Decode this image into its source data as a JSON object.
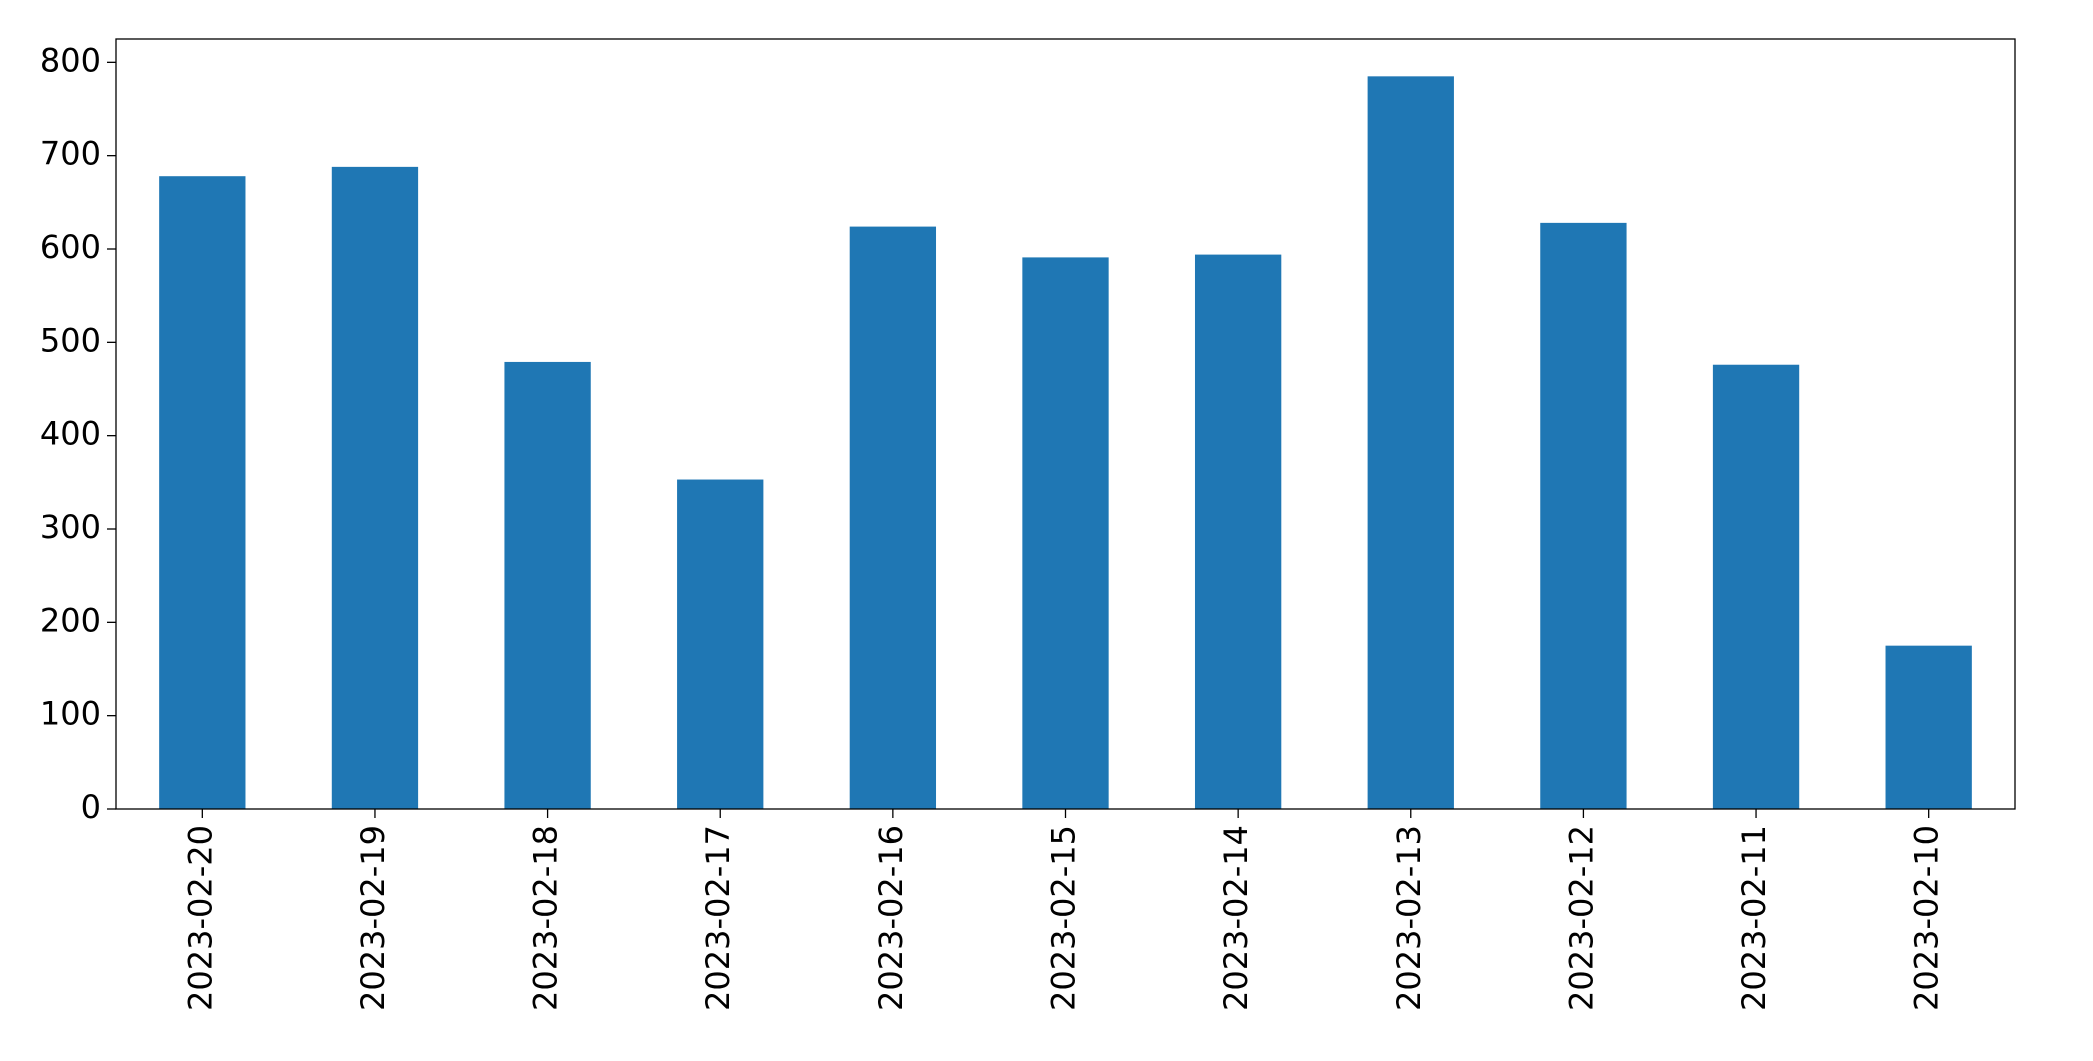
{
  "chart_data": {
    "type": "bar",
    "categories": [
      "2023-02-20",
      "2023-02-19",
      "2023-02-18",
      "2023-02-17",
      "2023-02-16",
      "2023-02-15",
      "2023-02-14",
      "2023-02-13",
      "2023-02-12",
      "2023-02-11",
      "2023-02-10"
    ],
    "values": [
      678,
      688,
      479,
      353,
      624,
      591,
      594,
      785,
      628,
      476,
      175
    ],
    "color": "#1f77b4",
    "ylim": [
      0,
      825
    ],
    "yticks": [
      0,
      100,
      200,
      300,
      400,
      500,
      600,
      700,
      800
    ],
    "grid": false
  }
}
